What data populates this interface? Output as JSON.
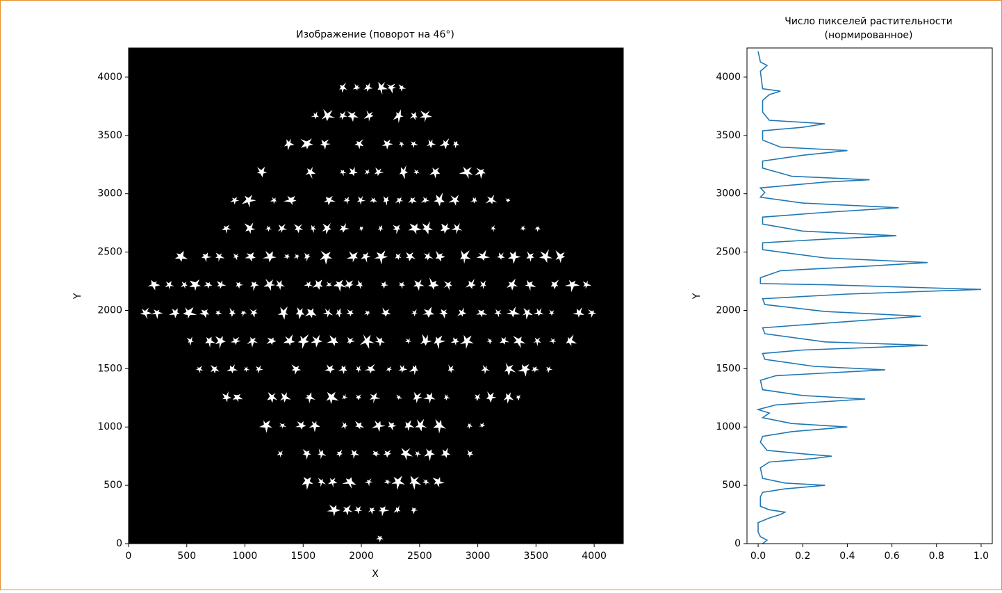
{
  "chart_data": [
    {
      "type": "image",
      "title": "Изображение (поворот на 46°)",
      "xlabel": "X",
      "ylabel": "Y",
      "xlim": [
        0,
        4250
      ],
      "ylim": [
        0,
        4250
      ],
      "xticks": [
        0,
        500,
        1000,
        1500,
        2000,
        2500,
        3000,
        3500,
        4000
      ],
      "yticks": [
        0,
        500,
        1000,
        1500,
        2000,
        2500,
        3000,
        3500,
        4000
      ]
    },
    {
      "type": "line",
      "title": [
        "Число пикселей растительности",
        "(нормированное)"
      ],
      "ylabel": "Y",
      "color": "#1f77b4",
      "xlim": [
        -0.05,
        1.05
      ],
      "ylim": [
        0,
        4250
      ],
      "xticks": [
        {
          "value": 0,
          "label": "0.0"
        },
        0.2,
        0.4,
        0.6,
        0.8,
        {
          "value": 1,
          "label": "1.0"
        }
      ],
      "yticks": [
        0,
        500,
        1000,
        1500,
        2000,
        2500,
        3000,
        3500,
        4000
      ],
      "y": [
        0,
        30,
        60,
        100,
        180,
        220,
        250,
        270,
        290,
        320,
        400,
        440,
        470,
        500,
        520,
        560,
        650,
        700,
        730,
        750,
        770,
        800,
        870,
        920,
        960,
        1000,
        1030,
        1080,
        1120,
        1150,
        1190,
        1240,
        1270,
        1320,
        1400,
        1440,
        1490,
        1520,
        1580,
        1630,
        1660,
        1700,
        1730,
        1800,
        1850,
        1890,
        1950,
        1990,
        2050,
        2100,
        2140,
        2180,
        2220,
        2230,
        2280,
        2340,
        2380,
        2410,
        2450,
        2520,
        2580,
        2610,
        2640,
        2680,
        2740,
        2800,
        2840,
        2880,
        2920,
        2970,
        3010,
        3050,
        3100,
        3120,
        3150,
        3220,
        3280,
        3330,
        3370,
        3400,
        3460,
        3540,
        3570,
        3600,
        3630,
        3700,
        3800,
        3850,
        3880,
        3900,
        4050,
        4100,
        4130,
        4220
      ],
      "values": [
        0.02,
        0.04,
        0.01,
        0,
        0,
        0.05,
        0.1,
        0.12,
        0.05,
        0.01,
        0.01,
        0.02,
        0.12,
        0.3,
        0.12,
        0.02,
        0.01,
        0.05,
        0.25,
        0.33,
        0.2,
        0.04,
        0.01,
        0.02,
        0.15,
        0.4,
        0.15,
        0.02,
        0.05,
        0,
        0.08,
        0.48,
        0.2,
        0.02,
        0.01,
        0.08,
        0.57,
        0.25,
        0.03,
        0.02,
        0.2,
        0.76,
        0.3,
        0.03,
        0.02,
        0.3,
        0.73,
        0.3,
        0.03,
        0.02,
        0.4,
        1,
        0.3,
        0.01,
        0.01,
        0.1,
        0.5,
        0.76,
        0.3,
        0.02,
        0.02,
        0.3,
        0.62,
        0.2,
        0.02,
        0.02,
        0.3,
        0.63,
        0.2,
        0.01,
        0.03,
        0.01,
        0.3,
        0.5,
        0.15,
        0.02,
        0.02,
        0.2,
        0.4,
        0.1,
        0.02,
        0.02,
        0.2,
        0.3,
        0.05,
        0.02,
        0.02,
        0.05,
        0.1,
        0.02,
        0.01,
        0.04,
        0.01,
        0
      ]
    }
  ]
}
